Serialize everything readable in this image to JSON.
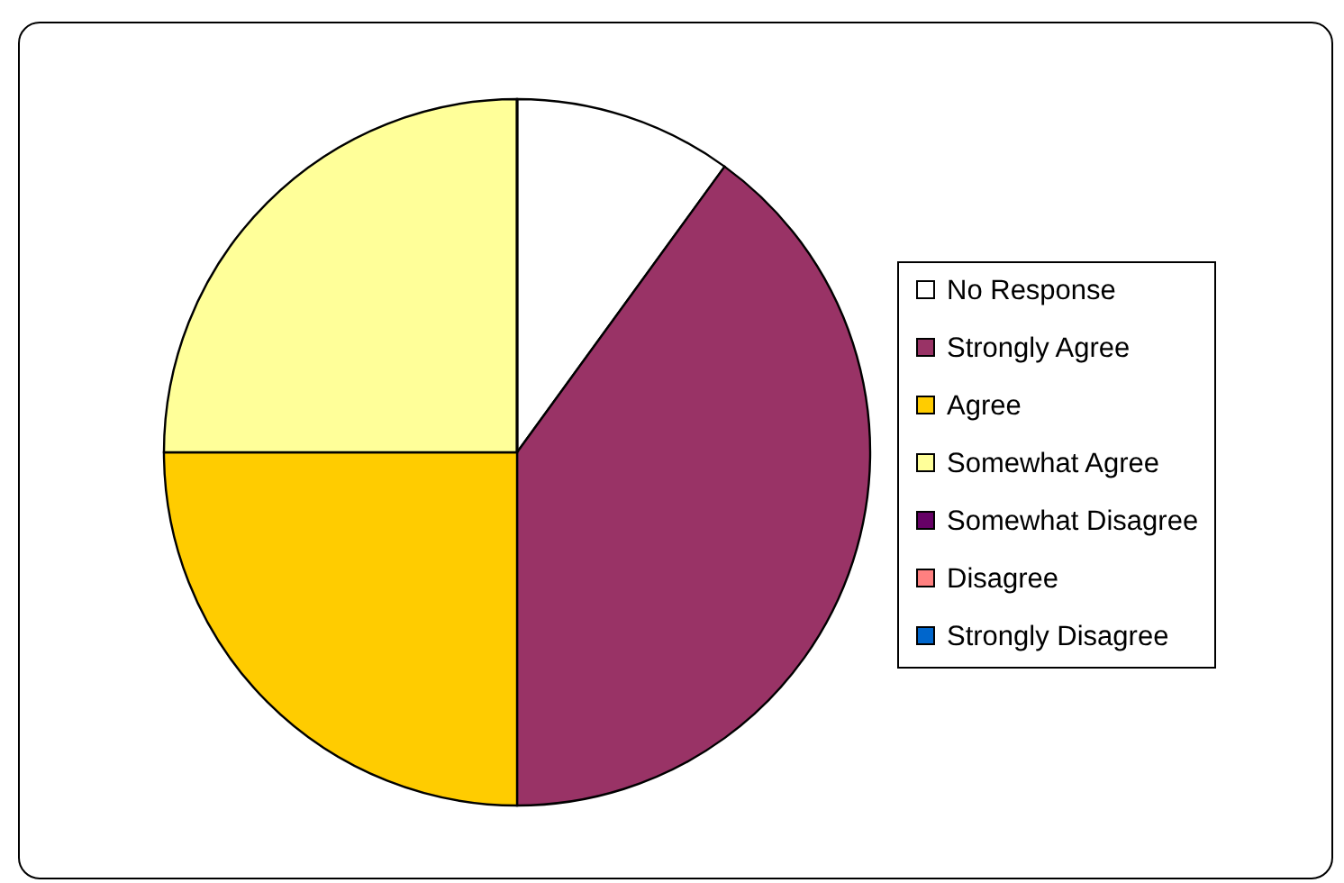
{
  "chart_data": {
    "type": "pie",
    "categories": [
      "No Response",
      "Strongly Agree",
      "Agree",
      "Somewhat Agree",
      "Somewhat Disagree",
      "Disagree",
      "Strongly Disagree"
    ],
    "values": [
      10,
      40,
      25,
      25,
      0,
      0,
      0
    ],
    "colors": [
      "#ffffff",
      "#993366",
      "#ffcc00",
      "#ffff99",
      "#660066",
      "#ff8080",
      "#0066cc"
    ],
    "legend": "right"
  }
}
